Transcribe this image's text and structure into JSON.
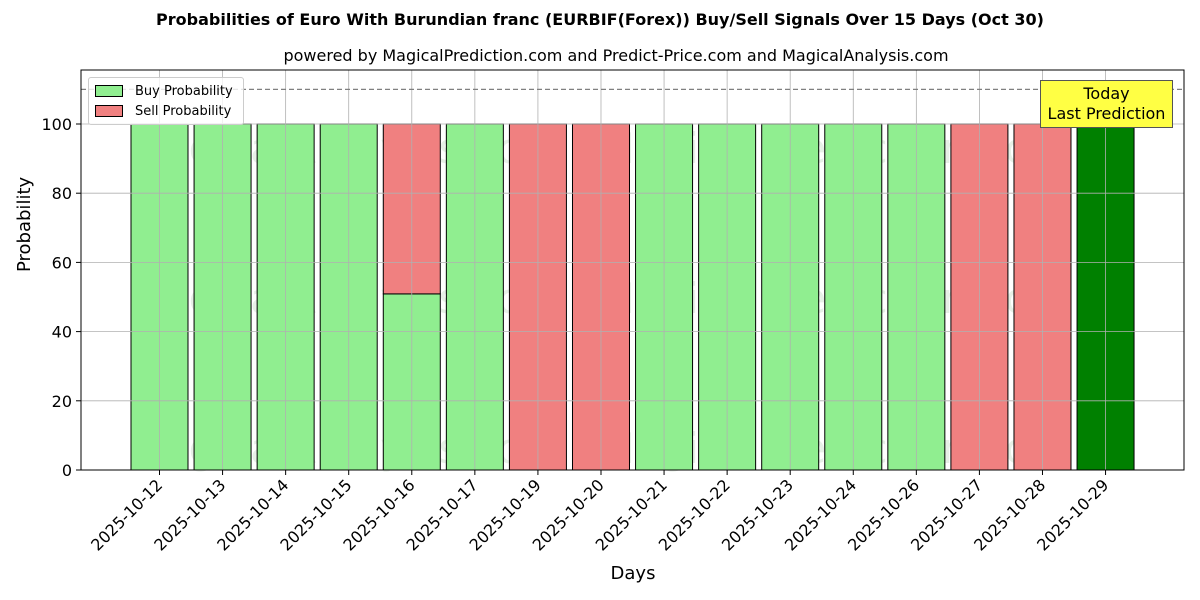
{
  "chart_data": {
    "type": "bar",
    "stacked": true,
    "title": "Probabilities of Euro With Burundian franc (EURBIF(Forex)) Buy/Sell Signals Over 15 Days (Oct 30)",
    "subtitle": "powered by MagicalPrediction.com and Predict-Price.com and MagicalAnalysis.com",
    "xlabel": "Days",
    "ylabel": "Probability",
    "ylim": [
      0,
      115
    ],
    "yticks": [
      0,
      20,
      40,
      60,
      80,
      100
    ],
    "grid": true,
    "legend_position": "upper left",
    "reference_line": {
      "y": 110,
      "style": "dashed",
      "color": "#808080"
    },
    "categories": [
      "2025-10-12",
      "2025-10-13",
      "2025-10-14",
      "2025-10-15",
      "2025-10-16",
      "2025-10-17",
      "2025-10-19",
      "2025-10-20",
      "2025-10-21",
      "2025-10-22",
      "2025-10-23",
      "2025-10-24",
      "2025-10-26",
      "2025-10-27",
      "2025-10-28",
      "2025-10-29"
    ],
    "series": [
      {
        "name": "Buy Probability",
        "color": "#90ee90",
        "values": [
          100,
          100,
          100,
          100,
          50.9,
          100,
          0,
          0,
          100,
          100,
          100,
          100,
          100,
          0,
          0,
          100
        ]
      },
      {
        "name": "Sell Probability",
        "color": "#f08080",
        "values": [
          0,
          0,
          0,
          0,
          49.1,
          0,
          100,
          100,
          0,
          0,
          0,
          0,
          0,
          100,
          100,
          0
        ]
      }
    ],
    "highlight": {
      "index": 15,
      "color": "#008000"
    },
    "annotation": {
      "line1": "Today",
      "line2": "Last Prediction",
      "background": "#ffff44"
    },
    "watermarks": [
      "MagicalAnalysis.com",
      "MagicalPrediction.com"
    ]
  },
  "legend": {
    "buy": "Buy Probability",
    "sell": "Sell Probability"
  }
}
